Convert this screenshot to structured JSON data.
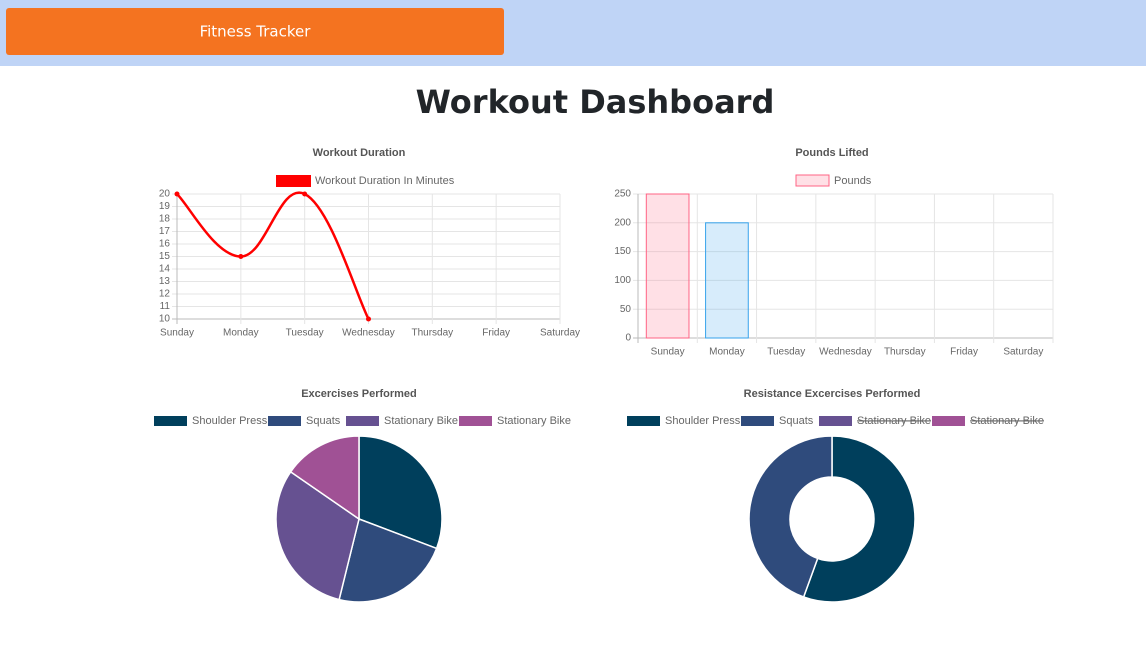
{
  "header": {
    "brand": "Fitness Tracker"
  },
  "title": "Workout Dashboard",
  "chart_data": [
    {
      "type": "line",
      "title": "Workout Duration",
      "categories": [
        "Sunday",
        "Monday",
        "Tuesday",
        "Wednesday",
        "Thursday",
        "Friday",
        "Saturday"
      ],
      "series": [
        {
          "name": "Workout Duration In Minutes",
          "color": "#ff0000",
          "values": [
            20,
            15,
            20,
            10,
            null,
            null,
            null
          ]
        }
      ],
      "ylim": [
        10,
        20
      ],
      "yticks": [
        10,
        11,
        12,
        13,
        14,
        15,
        16,
        17,
        18,
        19,
        20
      ],
      "grid": true
    },
    {
      "type": "bar",
      "title": "Pounds Lifted",
      "categories": [
        "Sunday",
        "Monday",
        "Tuesday",
        "Wednesday",
        "Thursday",
        "Friday",
        "Saturday"
      ],
      "series": [
        {
          "name": "Pounds",
          "values": [
            250,
            200,
            null,
            null,
            null,
            null,
            null
          ],
          "colors": [
            "rgba(255,99,132,0.2)",
            "rgba(54,162,235,0.2)",
            "rgba(255,206,86,0.2)",
            "rgba(75,192,192,0.2)",
            "rgba(153,102,255,0.2)",
            "rgba(255,159,64,0.2)",
            "rgba(255,99,132,0.2)"
          ],
          "border_colors": [
            "#ff6384",
            "#36a2eb",
            "#ffce56",
            "#4bc0c0",
            "#9966ff",
            "#ff9f40",
            "#ff6384"
          ]
        }
      ],
      "ylim": [
        0,
        250
      ],
      "yticks": [
        0,
        50,
        100,
        150,
        200,
        250
      ],
      "grid": true
    },
    {
      "type": "pie",
      "title": "Excercises Performed",
      "categories": [
        "Shoulder Press",
        "Squats",
        "Stationary Bike",
        "Stationary Bike"
      ],
      "values": [
        20,
        15,
        20,
        10
      ],
      "colors": [
        "#003f5c",
        "#2f4b7c",
        "#665191",
        "#a05195"
      ],
      "hidden": [
        false,
        false,
        false,
        false
      ]
    },
    {
      "type": "doughnut",
      "title": "Resistance Excercises Performed",
      "categories": [
        "Shoulder Press",
        "Squats",
        "Stationary Bike",
        "Stationary Bike"
      ],
      "values": [
        250,
        200,
        null,
        null
      ],
      "colors": [
        "#003f5c",
        "#2f4b7c",
        "#665191",
        "#a05195"
      ],
      "hidden": [
        false,
        false,
        true,
        true
      ]
    }
  ]
}
